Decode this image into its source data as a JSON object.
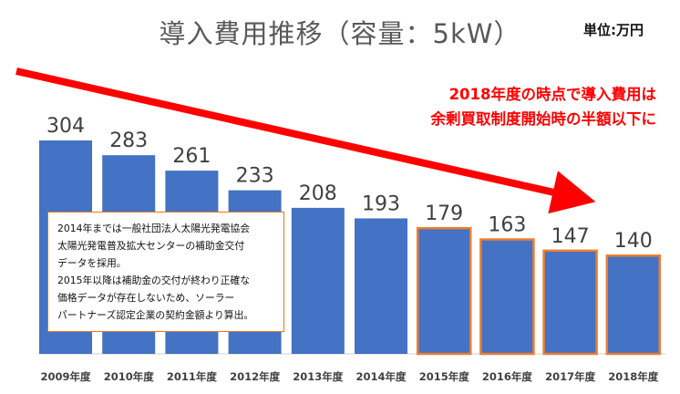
{
  "title": "導入費用推移（容量：5kW）",
  "unit_label": "単位:万円",
  "headline": [
    "2018年度の時点で導入費用は",
    "余剰買取制度開始時の半額以下に"
  ],
  "note": [
    "2014年までは一般社団法人太陽光発電協会",
    "太陽光発電普及拡大センターの補助金交付",
    "データを採用。",
    "2015年以降は補助金の交付が終わり正確な",
    "価格データが存在しないため、ソーラー",
    "パートナーズ認定企業の契約金額より算出。"
  ],
  "colors": {
    "bar": "#4472c4",
    "highlight_outline": "#ed7d31",
    "arrow": "#ff0000",
    "headline": "#ff0000",
    "label": "#404040"
  },
  "chart_data": {
    "type": "bar",
    "title": "導入費用推移（容量：5kW）",
    "ylabel": "単位:万円",
    "categories": [
      "2009年度",
      "2010年度",
      "2011年度",
      "2012年度",
      "2013年度",
      "2014年度",
      "2015年度",
      "2016年度",
      "2017年度",
      "2018年度"
    ],
    "values": [
      304,
      283,
      261,
      233,
      208,
      193,
      179,
      163,
      147,
      140
    ],
    "highlighted_categories": [
      "2015年度",
      "2016年度",
      "2017年度",
      "2018年度"
    ],
    "ylim": [
      0,
      304
    ],
    "grid": false,
    "legend": "none",
    "annotation": "downward trend arrow from 2009年度 to 2018年度"
  }
}
